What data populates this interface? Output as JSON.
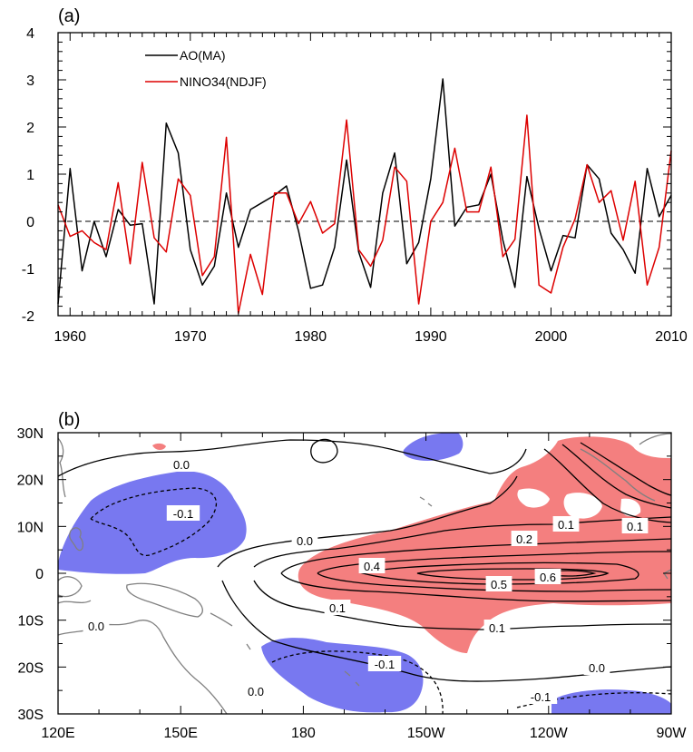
{
  "chart_data": [
    {
      "type": "line",
      "panel_label": "(a)",
      "x": [
        1959,
        1960,
        1961,
        1962,
        1963,
        1964,
        1965,
        1966,
        1967,
        1968,
        1969,
        1970,
        1971,
        1972,
        1973,
        1974,
        1975,
        1976,
        1977,
        1978,
        1979,
        1980,
        1981,
        1982,
        1983,
        1984,
        1985,
        1986,
        1987,
        1988,
        1989,
        1990,
        1991,
        1992,
        1993,
        1994,
        1995,
        1996,
        1997,
        1998,
        1999,
        2000,
        2001,
        2002,
        2003,
        2004,
        2005,
        2006,
        2007,
        2008,
        2009,
        2010
      ],
      "series": [
        {
          "name": "AO(MA)",
          "color": "#000000",
          "values": [
            -1.75,
            1.12,
            -1.05,
            0.0,
            -0.75,
            0.25,
            -0.08,
            -0.05,
            -1.75,
            2.08,
            1.45,
            -0.6,
            -1.35,
            -0.95,
            0.6,
            -0.55,
            0.25,
            0.4,
            0.55,
            0.75,
            -0.2,
            -1.42,
            -1.35,
            -0.55,
            1.3,
            -0.65,
            -1.4,
            0.6,
            1.45,
            -0.9,
            -0.45,
            0.9,
            3.02,
            -0.1,
            0.3,
            0.35,
            1.0,
            -0.4,
            -1.4,
            0.95,
            -0.15,
            -1.05,
            -0.3,
            -0.35,
            1.2,
            0.9,
            -0.25,
            -0.6,
            -1.1,
            1.12,
            0.1,
            0.55
          ]
        },
        {
          "name": "NINO34(NDJF)",
          "color": "#dd0000",
          "values": [
            0.35,
            -0.32,
            -0.2,
            -0.45,
            -0.6,
            0.82,
            -0.9,
            1.25,
            -0.35,
            -0.65,
            0.9,
            0.55,
            -1.15,
            -0.75,
            1.78,
            -1.95,
            -0.7,
            -1.55,
            0.6,
            0.6,
            -0.05,
            0.42,
            -0.25,
            -0.05,
            2.15,
            -0.6,
            -0.95,
            -0.4,
            1.15,
            0.85,
            -1.75,
            0.0,
            0.4,
            1.55,
            0.2,
            0.2,
            1.15,
            -0.75,
            -0.38,
            2.25,
            -1.35,
            -1.52,
            -0.55,
            0.05,
            1.2,
            0.4,
            0.65,
            -0.4,
            0.85,
            -1.35,
            -0.55,
            1.5
          ]
        }
      ],
      "xlim": [
        1959,
        2010
      ],
      "ylim": [
        -2,
        4
      ],
      "xticks": [
        "1960",
        "1970",
        "1980",
        "1990",
        "2000",
        "2010"
      ],
      "yticks": [
        "-2",
        "-1",
        "0",
        "1",
        "2",
        "3",
        "4"
      ],
      "zero_line": "dashed",
      "legend_position": "top-left"
    },
    {
      "type": "contour map",
      "panel_label": "(b)",
      "xlim": [
        "120E",
        "90W"
      ],
      "ylim": [
        "30S",
        "30N"
      ],
      "xticks": [
        "120E",
        "150E",
        "180",
        "150W",
        "120W",
        "90W"
      ],
      "yticks": [
        "30N",
        "20N",
        "10N",
        "0",
        "10S",
        "20S",
        "30S"
      ],
      "contour_labels": [
        "0.0",
        "-0.1",
        "0.0",
        "0.0",
        "0.4",
        "0.2",
        "0.1",
        "0.1",
        "0.5",
        "0.6",
        "0.1",
        "0.1",
        "0.0",
        "-0.1",
        "0.0",
        "-0.1"
      ],
      "positive_shading_color": "#f47f7f",
      "negative_shading_color": "#7878f0",
      "coast_color": "#808080"
    }
  ]
}
